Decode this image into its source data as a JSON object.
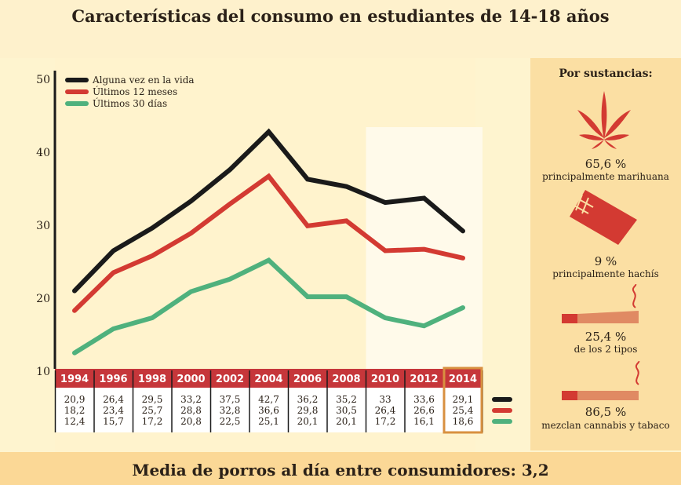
{
  "title": "Características del consumo en estudiantes de 14-18 años",
  "footer": "Media de porros al día entre consumidores: 3,2",
  "chart_data": {
    "type": "line",
    "x": [
      "1994",
      "1996",
      "1998",
      "2000",
      "2002",
      "2004",
      "2006",
      "2008",
      "2010",
      "2012",
      "2014"
    ],
    "series": [
      {
        "name": "Alguna vez en la vida",
        "color": "#1a1a1a",
        "values": [
          20.9,
          26.4,
          29.5,
          33.2,
          37.5,
          42.7,
          36.2,
          35.2,
          33,
          33.6,
          29.1
        ],
        "labels": [
          "20,9",
          "26,4",
          "29,5",
          "33,2",
          "37,5",
          "42,7",
          "36,2",
          "35,2",
          "33",
          "33,6",
          "29,1"
        ]
      },
      {
        "name": "Últimos 12 meses",
        "color": "#d33a32",
        "values": [
          18.2,
          23.4,
          25.7,
          28.8,
          32.8,
          36.6,
          29.8,
          30.5,
          26.4,
          26.6,
          25.4
        ],
        "labels": [
          "18,2",
          "23,4",
          "25,7",
          "28,8",
          "32,8",
          "36,6",
          "29,8",
          "30,5",
          "26,4",
          "26,6",
          "25,4"
        ]
      },
      {
        "name": "Últimos 30 días",
        "color": "#4fb17d",
        "values": [
          12.4,
          15.7,
          17.2,
          20.8,
          22.5,
          25.1,
          20.1,
          20.1,
          17.2,
          16.1,
          18.6
        ],
        "labels": [
          "12,4",
          "15,7",
          "17,2",
          "20,8",
          "22,5",
          "25,1",
          "20,1",
          "20,1",
          "17,2",
          "16,1",
          "18,6"
        ]
      }
    ],
    "yticks": [
      "10",
      "20",
      "30",
      "40",
      "50"
    ],
    "ylim": [
      10,
      50
    ],
    "highlight_range": [
      "2010",
      "2014"
    ],
    "highlight_year": "2014"
  },
  "colors": {
    "grid_header": "#c6363a",
    "highlight_border": "#d89040"
  },
  "side": {
    "heading": "Por sustancias:",
    "items": [
      {
        "value": "65,6 %",
        "label": "principalmente marihuana",
        "icon": "marijuana-leaf-icon"
      },
      {
        "value": "9 %",
        "label": "principalmente hachís",
        "icon": "hashish-block-icon"
      },
      {
        "value": "25,4 %",
        "label": "de los 2 tipos",
        "icon": "joint-icon"
      },
      {
        "value": "86,5 %",
        "label": "mezclan cannabis y tabaco",
        "icon": "cigarette-icon"
      }
    ]
  }
}
